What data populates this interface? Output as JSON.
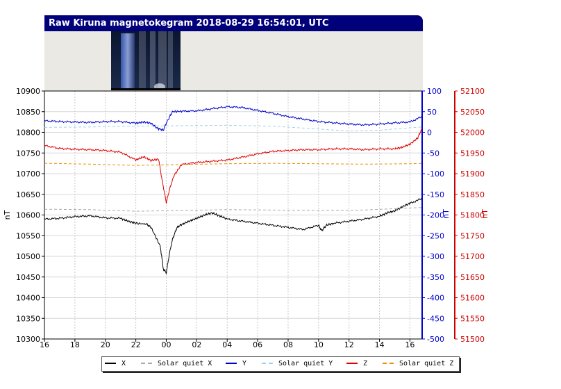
{
  "header": {
    "title": "Raw Kiruna magnetokegram 2018-08-29 16:54:01, UTC"
  },
  "chart_data": {
    "type": "line",
    "title": "Raw Kiruna magnetokegram 2018-08-29 16:54:01, UTC",
    "x_tick_labels": [
      "16",
      "18",
      "20",
      "22",
      "00",
      "02",
      "04",
      "06",
      "08",
      "10",
      "12",
      "14",
      "16"
    ],
    "x_hours_span": 24.8,
    "axes": {
      "left": {
        "label": "nT",
        "color": "#000000",
        "range": [
          10300,
          10900
        ],
        "ticks": [
          10900,
          10850,
          10800,
          10750,
          10700,
          10650,
          10600,
          10550,
          10500,
          10450,
          10400,
          10350,
          10300
        ]
      },
      "mid": {
        "label": "nT",
        "color": "#0000cc",
        "range": [
          -500,
          100
        ],
        "ticks": [
          100,
          50,
          0,
          -50,
          -100,
          -150,
          -200,
          -250,
          -300,
          -350,
          -400,
          -450,
          -500
        ]
      },
      "right": {
        "label": "nT",
        "color": "#cc0000",
        "range": [
          51500,
          52100
        ],
        "ticks": [
          52100,
          52050,
          52000,
          51950,
          51900,
          51850,
          51800,
          51750,
          51700,
          51650,
          51600,
          51550,
          51500
        ]
      }
    },
    "grid": true,
    "legend_position": "bottom",
    "series": [
      {
        "name": "X",
        "axis": "left",
        "color": "#000000",
        "dash": false,
        "t": [
          0,
          1,
          2,
          3,
          4,
          5,
          5.5,
          6,
          6.7,
          7,
          7.6,
          7.7,
          7.8,
          8,
          8.2,
          8.4,
          8.7,
          9,
          9.5,
          10,
          10.5,
          11,
          11.5,
          12,
          13,
          14,
          15,
          16,
          17,
          18,
          18.2,
          18.5,
          19,
          20,
          21,
          22,
          22.5,
          23,
          23.5,
          24,
          24.8
        ],
        "v": [
          10590,
          10592,
          10596,
          10598,
          10593,
          10592,
          10585,
          10580,
          10578,
          10570,
          10525,
          10500,
          10470,
          10460,
          10505,
          10540,
          10570,
          10577,
          10585,
          10592,
          10600,
          10605,
          10598,
          10590,
          10585,
          10580,
          10575,
          10570,
          10565,
          10575,
          10562,
          10575,
          10580,
          10585,
          10590,
          10597,
          10605,
          10610,
          10620,
          10628,
          10640
        ]
      },
      {
        "name": "Solar quiet X",
        "axis": "left",
        "color": "#a8a8a8",
        "dash": true,
        "t": [
          0,
          3,
          6,
          9,
          12,
          15,
          18,
          21,
          24,
          24.8
        ],
        "v": [
          10614,
          10613,
          10609,
          10611,
          10613,
          10612,
          10611,
          10612,
          10617,
          10618
        ]
      },
      {
        "name": "Y",
        "axis": "left",
        "color": "#0000cc",
        "dash": false,
        "t": [
          0,
          1,
          2,
          3,
          4,
          5,
          6,
          6.5,
          7,
          7.4,
          7.8,
          8,
          8.4,
          9,
          10,
          11,
          12,
          13,
          14,
          15,
          16,
          17,
          18,
          19,
          20,
          21,
          22,
          23,
          24,
          24.8
        ],
        "v": [
          10828,
          10826,
          10825,
          10824,
          10826,
          10826,
          10822,
          10825,
          10822,
          10810,
          10805,
          10822,
          10850,
          10851,
          10852,
          10857,
          10862,
          10860,
          10853,
          10846,
          10838,
          10832,
          10826,
          10823,
          10820,
          10818,
          10820,
          10823,
          10825,
          10838
        ]
      },
      {
        "name": "Solar quiet Y",
        "axis": "left",
        "color": "#9fd4ee",
        "dash": true,
        "t": [
          0,
          3,
          6,
          9,
          12,
          15,
          18,
          20,
          22,
          24,
          24.8
        ],
        "v": [
          10812,
          10813,
          10815,
          10816,
          10817,
          10815,
          10808,
          10803,
          10805,
          10811,
          10813
        ]
      },
      {
        "name": "Z",
        "axis": "left",
        "color": "#dd0000",
        "dash": false,
        "t": [
          0,
          1,
          2,
          3,
          4,
          5,
          6,
          6.5,
          7,
          7.5,
          7.7,
          8,
          8.2,
          8.5,
          9,
          10,
          11,
          12,
          13,
          14,
          15,
          16,
          17,
          18,
          19,
          20,
          21,
          22,
          23,
          23.5,
          24,
          24.5,
          24.8
        ],
        "v": [
          10768,
          10761,
          10759,
          10758,
          10756,
          10752,
          10733,
          10741,
          10732,
          10735,
          10690,
          10630,
          10660,
          10695,
          10722,
          10727,
          10730,
          10733,
          10740,
          10748,
          10754,
          10756,
          10758,
          10758,
          10760,
          10760,
          10758,
          10760,
          10760,
          10764,
          10771,
          10786,
          10810
        ]
      },
      {
        "name": "Solar quiet Z",
        "axis": "left",
        "color": "#e89000",
        "dash": true,
        "t": [
          0,
          3,
          6,
          9,
          12,
          15,
          18,
          21,
          24,
          24.8
        ],
        "v": [
          10725,
          10723,
          10720,
          10722,
          10724,
          10725,
          10724,
          10723,
          10724,
          10725
        ]
      }
    ]
  },
  "legend": {
    "items": [
      {
        "label": "X",
        "color": "#000000",
        "dash": false
      },
      {
        "label": "Solar quiet X",
        "color": "#a8a8a8",
        "dash": true
      },
      {
        "label": "Y",
        "color": "#0000cc",
        "dash": false
      },
      {
        "label": "Solar quiet Y",
        "color": "#9fd4ee",
        "dash": true
      },
      {
        "label": "Z",
        "color": "#dd0000",
        "dash": false
      },
      {
        "label": "Solar quiet Z",
        "color": "#e89000",
        "dash": true
      }
    ]
  }
}
